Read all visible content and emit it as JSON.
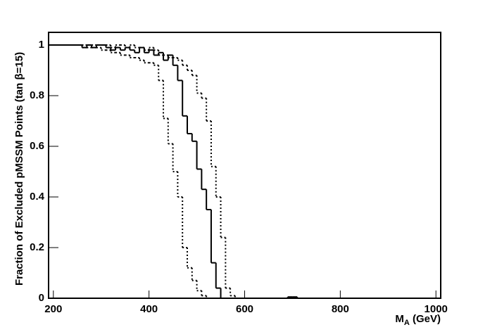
{
  "chart_data": {
    "type": "histogram",
    "ylabel": "Fraction of Excluded pMSSM Points (tan β=15)",
    "xlabel": [
      "M",
      "A",
      " (GeV)"
    ],
    "bins": [
      190,
      200,
      210,
      220,
      230,
      240,
      250,
      260,
      270,
      280,
      290,
      300,
      310,
      320,
      330,
      340,
      350,
      360,
      370,
      380,
      390,
      400,
      410,
      420,
      430,
      440,
      450,
      460,
      470,
      480,
      490,
      500,
      510,
      520,
      530,
      540,
      550,
      560,
      570,
      580,
      590,
      600,
      610,
      620,
      630,
      640,
      650,
      660,
      670,
      680,
      690,
      700,
      710,
      720,
      730,
      740,
      750,
      760,
      770,
      780,
      790,
      800,
      810,
      820,
      830,
      840,
      850,
      860,
      870,
      880,
      890,
      900,
      910,
      920,
      930,
      940,
      950,
      960,
      970,
      980,
      990,
      1000
    ],
    "series": [
      {
        "style": "solid",
        "color": "#000000",
        "values": [
          1,
          1,
          1,
          1,
          1,
          1,
          1,
          0.99,
          1,
          0.99,
          1,
          1,
          0.99,
          0.98,
          0.99,
          0.98,
          0.99,
          0.98,
          0.97,
          0.99,
          0.97,
          0.98,
          0.96,
          0.97,
          0.94,
          0.96,
          0.92,
          0.86,
          0.72,
          0.65,
          0.62,
          0.51,
          0.43,
          0.35,
          0.14,
          0.04,
          0,
          0,
          0,
          0,
          0,
          0,
          0,
          0,
          0,
          0,
          0,
          0,
          0,
          0,
          0.005,
          0.005,
          0,
          0,
          0,
          0,
          0,
          0,
          0,
          0,
          0,
          0,
          0,
          0,
          0,
          0,
          0,
          0,
          0,
          0,
          0,
          0,
          0,
          0,
          0,
          0,
          0,
          0,
          0,
          0,
          0
        ]
      },
      {
        "style": "dotted",
        "color": "#000000",
        "values": [
          1,
          1,
          1,
          1,
          1,
          1,
          1,
          0.99,
          0.99,
          0.99,
          0.99,
          0.98,
          0.98,
          0.97,
          0.97,
          0.96,
          0.96,
          0.95,
          0.95,
          0.94,
          0.93,
          0.93,
          0.92,
          0.86,
          0.71,
          0.61,
          0.5,
          0.4,
          0.2,
          0.12,
          0.07,
          0.03,
          0.01,
          0,
          0,
          0,
          0,
          0,
          0,
          0,
          0,
          0,
          0,
          0,
          0,
          0,
          0,
          0,
          0,
          0,
          0,
          0,
          0,
          0,
          0,
          0,
          0,
          0,
          0,
          0,
          0,
          0,
          0,
          0,
          0,
          0,
          0,
          0,
          0,
          0,
          0,
          0,
          0,
          0,
          0,
          0,
          0,
          0,
          0,
          0,
          0
        ]
      },
      {
        "style": "dotted",
        "color": "#000000",
        "values": [
          1,
          1,
          1,
          1,
          1,
          1,
          1,
          1,
          1,
          1,
          1,
          1,
          1,
          0.99,
          1,
          1,
          0.99,
          1,
          0.99,
          0.99,
          0.98,
          0.99,
          0.98,
          0.96,
          0.96,
          0.95,
          0.95,
          0.94,
          0.92,
          0.9,
          0.88,
          0.81,
          0.79,
          0.7,
          0.52,
          0.4,
          0.24,
          0.04,
          0.01,
          0,
          0,
          0,
          0,
          0,
          0,
          0,
          0,
          0,
          0,
          0,
          0,
          0,
          0,
          0,
          0,
          0,
          0,
          0,
          0,
          0,
          0,
          0,
          0,
          0,
          0,
          0,
          0,
          0,
          0,
          0,
          0,
          0,
          0,
          0,
          0,
          0,
          0,
          0,
          0,
          0,
          0
        ]
      }
    ],
    "xlim": [
      190,
      1010
    ],
    "ylim": [
      0,
      1.05
    ],
    "xticks": [
      200,
      400,
      600,
      800,
      1000
    ],
    "yticks": [
      0,
      0.2,
      0.4,
      0.6,
      0.8,
      1
    ]
  }
}
